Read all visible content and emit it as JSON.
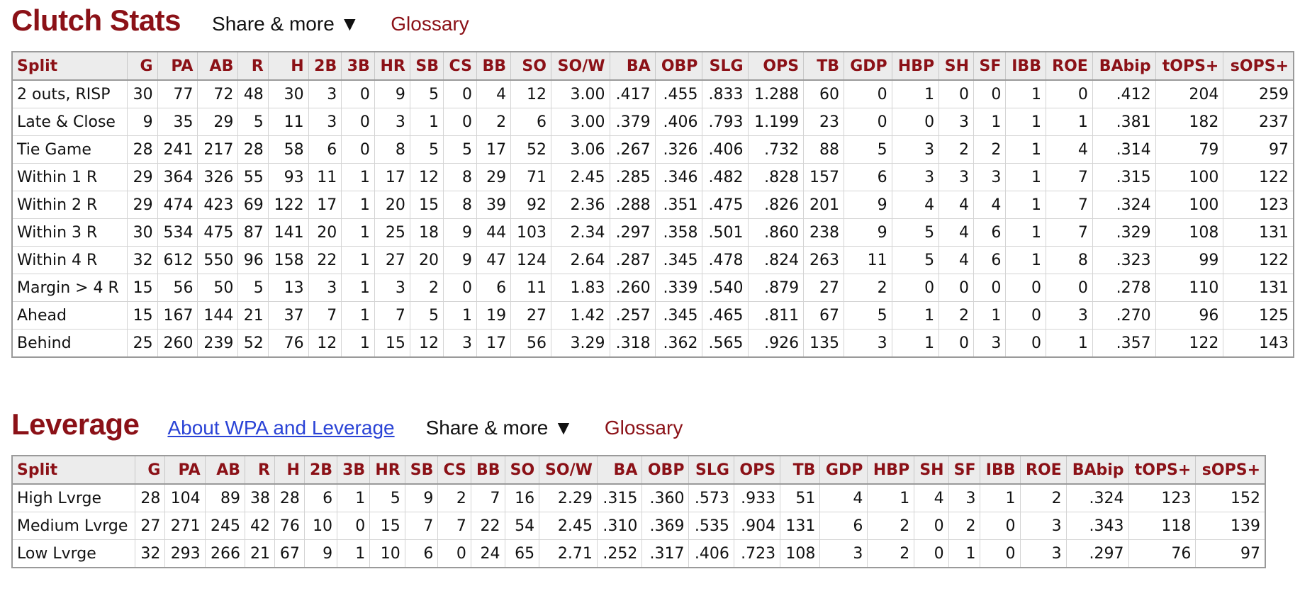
{
  "clutch": {
    "title": "Clutch Stats",
    "share_label": "Share & more ▼",
    "glossary_label": "Glossary",
    "columns": [
      "Split",
      "G",
      "PA",
      "AB",
      "R",
      "H",
      "2B",
      "3B",
      "HR",
      "SB",
      "CS",
      "BB",
      "SO",
      "SO/W",
      "BA",
      "OBP",
      "SLG",
      "OPS",
      "TB",
      "GDP",
      "HBP",
      "SH",
      "SF",
      "IBB",
      "ROE",
      "BAbip",
      "tOPS+",
      "sOPS+"
    ],
    "rows": [
      [
        "2 outs, RISP",
        "30",
        "77",
        "72",
        "48",
        "30",
        "3",
        "0",
        "9",
        "5",
        "0",
        "4",
        "12",
        "3.00",
        ".417",
        ".455",
        ".833",
        "1.288",
        "60",
        "0",
        "1",
        "0",
        "0",
        "1",
        "0",
        ".412",
        "204",
        "259"
      ],
      [
        "Late & Close",
        "9",
        "35",
        "29",
        "5",
        "11",
        "3",
        "0",
        "3",
        "1",
        "0",
        "2",
        "6",
        "3.00",
        ".379",
        ".406",
        ".793",
        "1.199",
        "23",
        "0",
        "0",
        "3",
        "1",
        "1",
        "1",
        ".381",
        "182",
        "237"
      ],
      [
        "Tie Game",
        "28",
        "241",
        "217",
        "28",
        "58",
        "6",
        "0",
        "8",
        "5",
        "5",
        "17",
        "52",
        "3.06",
        ".267",
        ".326",
        ".406",
        ".732",
        "88",
        "5",
        "3",
        "2",
        "2",
        "1",
        "4",
        ".314",
        "79",
        "97"
      ],
      [
        "Within 1 R",
        "29",
        "364",
        "326",
        "55",
        "93",
        "11",
        "1",
        "17",
        "12",
        "8",
        "29",
        "71",
        "2.45",
        ".285",
        ".346",
        ".482",
        ".828",
        "157",
        "6",
        "3",
        "3",
        "3",
        "1",
        "7",
        ".315",
        "100",
        "122"
      ],
      [
        "Within 2 R",
        "29",
        "474",
        "423",
        "69",
        "122",
        "17",
        "1",
        "20",
        "15",
        "8",
        "39",
        "92",
        "2.36",
        ".288",
        ".351",
        ".475",
        ".826",
        "201",
        "9",
        "4",
        "4",
        "4",
        "1",
        "7",
        ".324",
        "100",
        "123"
      ],
      [
        "Within 3 R",
        "30",
        "534",
        "475",
        "87",
        "141",
        "20",
        "1",
        "25",
        "18",
        "9",
        "44",
        "103",
        "2.34",
        ".297",
        ".358",
        ".501",
        ".860",
        "238",
        "9",
        "5",
        "4",
        "6",
        "1",
        "7",
        ".329",
        "108",
        "131"
      ],
      [
        "Within 4 R",
        "32",
        "612",
        "550",
        "96",
        "158",
        "22",
        "1",
        "27",
        "20",
        "9",
        "47",
        "124",
        "2.64",
        ".287",
        ".345",
        ".478",
        ".824",
        "263",
        "11",
        "5",
        "4",
        "6",
        "1",
        "8",
        ".323",
        "99",
        "122"
      ],
      [
        "Margin > 4 R",
        "15",
        "56",
        "50",
        "5",
        "13",
        "3",
        "1",
        "3",
        "2",
        "0",
        "6",
        "11",
        "1.83",
        ".260",
        ".339",
        ".540",
        ".879",
        "27",
        "2",
        "0",
        "0",
        "0",
        "0",
        "0",
        ".278",
        "110",
        "131"
      ],
      [
        "Ahead",
        "15",
        "167",
        "144",
        "21",
        "37",
        "7",
        "1",
        "7",
        "5",
        "1",
        "19",
        "27",
        "1.42",
        ".257",
        ".345",
        ".465",
        ".811",
        "67",
        "5",
        "1",
        "2",
        "1",
        "0",
        "3",
        ".270",
        "96",
        "125"
      ],
      [
        "Behind",
        "25",
        "260",
        "239",
        "52",
        "76",
        "12",
        "1",
        "15",
        "12",
        "3",
        "17",
        "56",
        "3.29",
        ".318",
        ".362",
        ".565",
        ".926",
        "135",
        "3",
        "1",
        "0",
        "3",
        "0",
        "1",
        ".357",
        "122",
        "143"
      ]
    ]
  },
  "leverage": {
    "title": "Leverage",
    "about_label": "About WPA and Leverage",
    "share_label": "Share & more ▼",
    "glossary_label": "Glossary",
    "columns": [
      "Split",
      "G",
      "PA",
      "AB",
      "R",
      "H",
      "2B",
      "3B",
      "HR",
      "SB",
      "CS",
      "BB",
      "SO",
      "SO/W",
      "BA",
      "OBP",
      "SLG",
      "OPS",
      "TB",
      "GDP",
      "HBP",
      "SH",
      "SF",
      "IBB",
      "ROE",
      "BAbip",
      "tOPS+",
      "sOPS+"
    ],
    "rows": [
      [
        "High Lvrge",
        "28",
        "104",
        "89",
        "38",
        "28",
        "6",
        "1",
        "5",
        "9",
        "2",
        "7",
        "16",
        "2.29",
        ".315",
        ".360",
        ".573",
        ".933",
        "51",
        "4",
        "1",
        "4",
        "3",
        "1",
        "2",
        ".324",
        "123",
        "152"
      ],
      [
        "Medium Lvrge",
        "27",
        "271",
        "245",
        "42",
        "76",
        "10",
        "0",
        "15",
        "7",
        "7",
        "22",
        "54",
        "2.45",
        ".310",
        ".369",
        ".535",
        ".904",
        "131",
        "6",
        "2",
        "0",
        "2",
        "0",
        "3",
        ".343",
        "118",
        "139"
      ],
      [
        "Low Lvrge",
        "32",
        "293",
        "266",
        "21",
        "67",
        "9",
        "1",
        "10",
        "6",
        "0",
        "24",
        "65",
        "2.71",
        ".252",
        ".317",
        ".406",
        ".723",
        "108",
        "3",
        "2",
        "0",
        "1",
        "0",
        "3",
        ".297",
        "76",
        "97"
      ]
    ]
  }
}
